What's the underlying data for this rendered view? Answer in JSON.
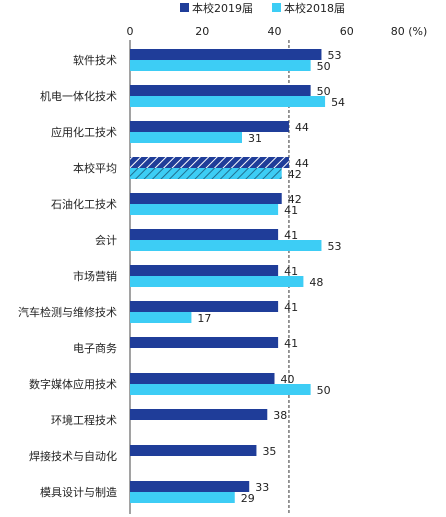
{
  "chart_data": {
    "type": "bar",
    "orientation": "horizontal",
    "xlim": [
      0,
      80
    ],
    "xticks": [
      "0",
      "20",
      "40",
      "60",
      "80"
    ],
    "unit_label": "(%)",
    "legend_position": "top",
    "reference_line": 44,
    "highlight_category": "本校平均",
    "categories": [
      "软件技术",
      "机电一体化技术",
      "应用化工技术",
      "本校平均",
      "石油化工技术",
      "会计",
      "市场营销",
      "汽车检测与维修技术",
      "电子商务",
      "数字媒体应用技术",
      "环境工程技术",
      "焊接技术与自动化",
      "模具设计与制造"
    ],
    "series": [
      {
        "name": "本校2019届",
        "color": "#1f3d99",
        "values": [
          53,
          50,
          44,
          44,
          42,
          41,
          41,
          41,
          41,
          40,
          38,
          35,
          33
        ]
      },
      {
        "name": "本校2018届",
        "color": "#3dcdf5",
        "values": [
          50,
          54,
          31,
          42,
          41,
          53,
          48,
          17,
          null,
          50,
          null,
          null,
          29
        ]
      }
    ]
  }
}
